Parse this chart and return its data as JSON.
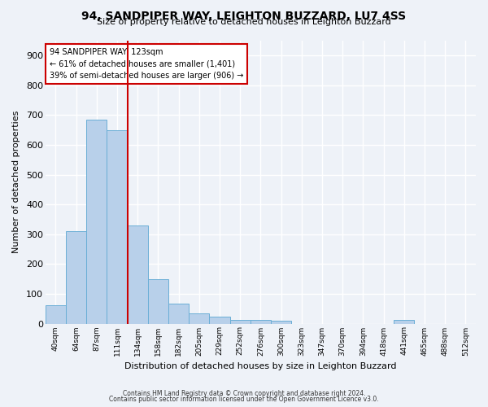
{
  "title": "94, SANDPIPER WAY, LEIGHTON BUZZARD, LU7 4SS",
  "subtitle": "Size of property relative to detached houses in Leighton Buzzard",
  "xlabel": "Distribution of detached houses by size in Leighton Buzzard",
  "ylabel": "Number of detached properties",
  "bin_labels": [
    "40sqm",
    "64sqm",
    "87sqm",
    "111sqm",
    "134sqm",
    "158sqm",
    "182sqm",
    "205sqm",
    "229sqm",
    "252sqm",
    "276sqm",
    "300sqm",
    "323sqm",
    "347sqm",
    "370sqm",
    "394sqm",
    "418sqm",
    "441sqm",
    "465sqm",
    "488sqm",
    "512sqm"
  ],
  "bar_values": [
    62,
    310,
    685,
    650,
    330,
    150,
    68,
    35,
    22,
    12,
    12,
    10,
    0,
    0,
    0,
    0,
    0,
    12,
    0,
    0,
    0
  ],
  "bar_color": "#b8d0ea",
  "bar_edge_color": "#6aaed6",
  "vline_bin_index": 3,
  "annotation_title": "94 SANDPIPER WAY: 123sqm",
  "annotation_line1": "← 61% of detached houses are smaller (1,401)",
  "annotation_line2": "39% of semi-detached houses are larger (906) →",
  "annotation_color": "#cc0000",
  "ylim": [
    0,
    950
  ],
  "yticks": [
    0,
    100,
    200,
    300,
    400,
    500,
    600,
    700,
    800,
    900
  ],
  "footer_line1": "Contains HM Land Registry data © Crown copyright and database right 2024.",
  "footer_line2": "Contains public sector information licensed under the Open Government Licence v3.0.",
  "background_color": "#eef2f8",
  "grid_color": "#ffffff"
}
